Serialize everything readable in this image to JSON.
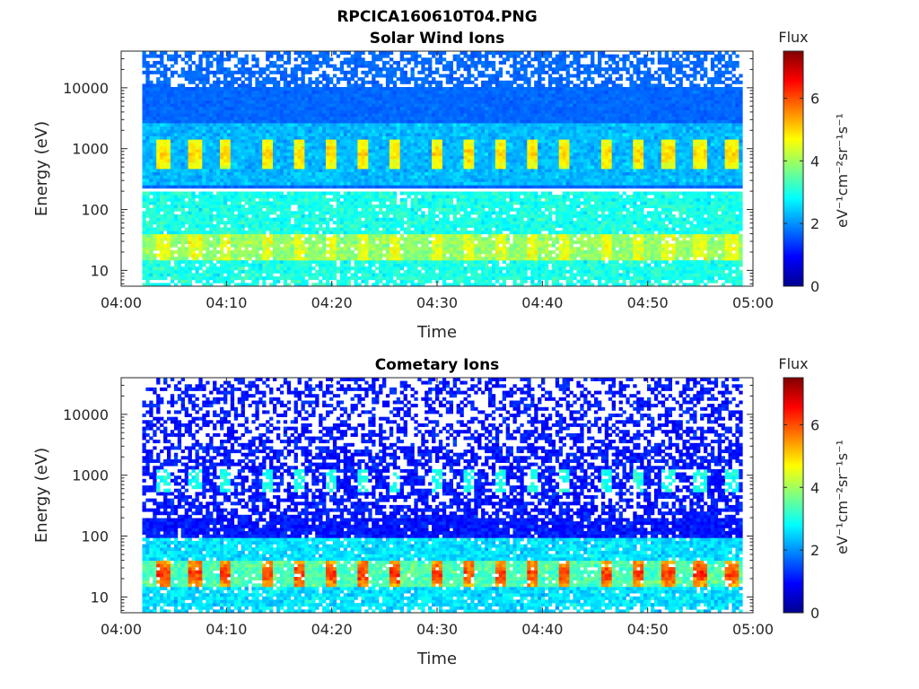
{
  "figure": {
    "title_line1": "RPCICA160610T04.PNG",
    "title_line2": "Solar Wind Ions"
  },
  "chart_data": [
    {
      "type": "heatmap",
      "title": "Solar Wind Ions",
      "xlabel": "Time",
      "ylabel": "Energy (eV)",
      "x_ticks": [
        "04:00",
        "04:10",
        "04:20",
        "04:30",
        "04:40",
        "04:50",
        "05:00"
      ],
      "xlim": [
        "04:00",
        "05:00"
      ],
      "yscale": "log",
      "ylim": [
        5.5,
        40000
      ],
      "y_ticks": [
        10,
        100,
        1000,
        10000
      ],
      "y_tick_labels": [
        "10",
        "100",
        "1000",
        "10000"
      ],
      "data_start": "04:02",
      "data_end": "04:59",
      "colorbar": {
        "label": "Flux",
        "units": "eV⁻¹cm⁻²sr⁻¹s⁻¹",
        "range": [
          0,
          7.5
        ],
        "ticks": [
          "0",
          "2",
          "4",
          "6"
        ]
      },
      "features": {
        "pulse_times": [
          "04:04",
          "04:07",
          "04:10",
          "04:14",
          "04:17",
          "04:20",
          "04:23",
          "04:26",
          "04:30",
          "04:33",
          "04:36",
          "04:39",
          "04:42",
          "04:46",
          "04:49",
          "04:52",
          "04:55",
          "04:58"
        ],
        "pulse_energy_eV": 850,
        "pulse_flux": 5,
        "low_energy_band_eV": [
          15,
          40
        ],
        "low_energy_flux": 4.5,
        "gap_energy_eV": 200
      }
    },
    {
      "type": "heatmap",
      "title": "Cometary Ions",
      "xlabel": "Time",
      "ylabel": "Energy (eV)",
      "x_ticks": [
        "04:00",
        "04:10",
        "04:20",
        "04:30",
        "04:40",
        "04:50",
        "05:00"
      ],
      "xlim": [
        "04:00",
        "05:00"
      ],
      "yscale": "log",
      "ylim": [
        5.5,
        40000
      ],
      "y_ticks": [
        10,
        100,
        1000,
        10000
      ],
      "y_tick_labels": [
        "10",
        "100",
        "1000",
        "10000"
      ],
      "data_start": "04:02",
      "data_end": "04:59",
      "colorbar": {
        "label": "Flux",
        "units": "eV⁻¹cm⁻²sr⁻¹s⁻¹",
        "range": [
          0,
          7.5
        ],
        "ticks": [
          "0",
          "2",
          "4",
          "6"
        ]
      },
      "features": {
        "pulse_times": [
          "04:04",
          "04:07",
          "04:10",
          "04:14",
          "04:17",
          "04:20",
          "04:23",
          "04:26",
          "04:30",
          "04:33",
          "04:36",
          "04:39",
          "04:42",
          "04:46",
          "04:49",
          "04:52",
          "04:55",
          "04:58"
        ],
        "pulse_energy_eV": 800,
        "pulse_flux": 3,
        "low_energy_band_eV": [
          15,
          40
        ],
        "low_energy_flux": 6.2
      }
    }
  ]
}
